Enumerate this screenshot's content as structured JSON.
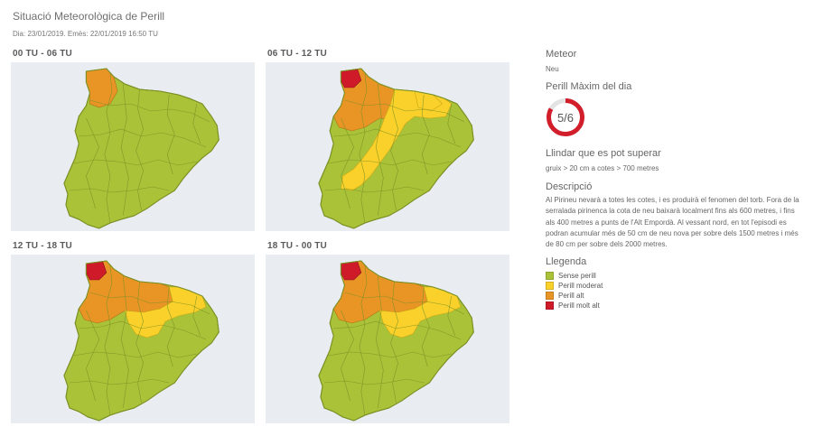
{
  "header": {
    "title": "Situació Meteorològica de Perill",
    "subtitle": "Dia: 23/01/2019. Emès: 22/01/2019 16:50 TU"
  },
  "colors": {
    "background_panel": "#e9edf1",
    "sense_perill": "#a9c238",
    "perill_moderat": "#f9d12a",
    "perill_alt": "#e89526",
    "perill_molt_alt": "#cf1a2a",
    "border": "#7a9024"
  },
  "panels": [
    {
      "label": "00 TU - 06 TU",
      "zones": {
        "molt_alt": false,
        "alt": "small",
        "moderat": "none"
      }
    },
    {
      "label": "06 TU - 12 TU",
      "zones": {
        "molt_alt": true,
        "alt": "wide",
        "moderat": "band_coast"
      }
    },
    {
      "label": "12 TU - 18 TU",
      "zones": {
        "molt_alt": true,
        "alt": "wide",
        "moderat": "pyrenees_east"
      }
    },
    {
      "label": "18 TU - 00 TU",
      "zones": {
        "molt_alt": true,
        "alt": "wide",
        "moderat": "pyrenees_east"
      }
    }
  ],
  "sidebar": {
    "meteor_heading": "Meteor",
    "meteor_value": "Neu",
    "max_heading": "Perill Màxim del dia",
    "max_value": "5/6",
    "max_fraction": 0.833,
    "threshold_heading": "Llindar que es pot superar",
    "threshold_value": "gruix > 20 cm a cotes > 700 metres",
    "description_heading": "Descripció",
    "description_text": "Al Pirineu nevarà a totes les cotes, i es produirà el fenomen del torb. Fora de la serralada pirinenca la cota de neu baixarà localment fins als 600 metres, i fins als 400 metres a punts de l'Alt Empordà. Al vessant nord, en tot l'episodi es podran acumular més de 50 cm de neu nova per sobre dels 1500 metres i més de 80 cm per sobre dels 2000 metres.",
    "legend_heading": "Llegenda",
    "legend": [
      {
        "label": "Sense perill",
        "color": "#a9c238"
      },
      {
        "label": "Perill moderat",
        "color": "#f9d12a"
      },
      {
        "label": "Perill alt",
        "color": "#e89526"
      },
      {
        "label": "Perill molt alt",
        "color": "#cf1a2a"
      }
    ]
  }
}
